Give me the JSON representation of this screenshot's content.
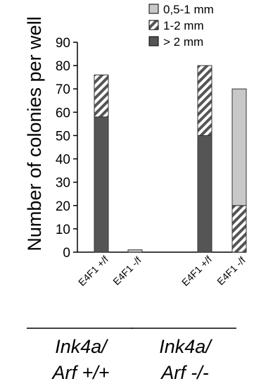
{
  "chart_data": {
    "type": "bar",
    "stacked": true,
    "ylabel": "Number of colonies per well",
    "ylim": [
      0,
      90
    ],
    "yticks": [
      0,
      10,
      20,
      30,
      40,
      50,
      60,
      70,
      80,
      90
    ],
    "categories": [
      "E4F1 +/f",
      "E4F1 -/f",
      "E4F1 +/f",
      "E4F1 -/f"
    ],
    "groups": [
      {
        "line1": "Ink4a/",
        "line2": "Arf +/+",
        "categories": [
          0,
          1
        ]
      },
      {
        "line1": "Ink4a/",
        "line2": "Arf -/-",
        "categories": [
          2,
          3
        ]
      }
    ],
    "series": [
      {
        "name": "> 2 mm",
        "pattern": "solid",
        "color": "#555555",
        "values": [
          58,
          0,
          50,
          0
        ]
      },
      {
        "name": "1-2 mm",
        "pattern": "hatch",
        "color": "#ffffff",
        "values": [
          18,
          0,
          30,
          20
        ]
      },
      {
        "name": "0,5-1 mm",
        "pattern": "solid",
        "color": "#c8c8c8",
        "values": [
          0,
          1,
          0,
          50
        ]
      }
    ],
    "legend": {
      "position": "top-right",
      "order": [
        "0,5-1 mm",
        "1-2 mm",
        "> 2 mm"
      ]
    },
    "grid": false
  }
}
